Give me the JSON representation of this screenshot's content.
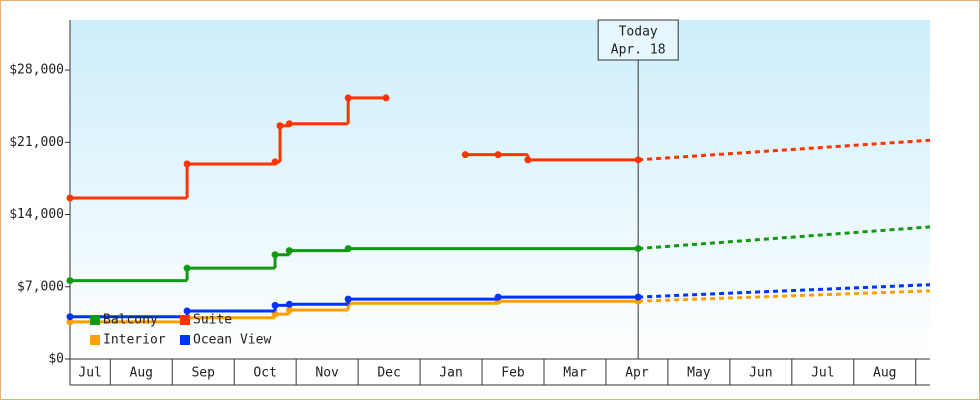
{
  "chart_data": {
    "type": "step-line",
    "annotation": {
      "title": "Today",
      "date": "Apr. 18",
      "x": 9.52
    },
    "categories": [
      "Jul",
      "Aug",
      "Sep",
      "Oct",
      "Nov",
      "Dec",
      "Jan",
      "Feb",
      "Mar",
      "Apr",
      "May",
      "Jun",
      "Jul",
      "Aug",
      null
    ],
    "xlim": [
      0.35,
      14.23
    ],
    "ylim": [
      0,
      32850
    ],
    "yticks": [
      {
        "value": 0,
        "label": "$0"
      },
      {
        "value": 7000,
        "label": "$7,000"
      },
      {
        "value": 14000,
        "label": "$14,000"
      },
      {
        "value": 21000,
        "label": "$21,000"
      },
      {
        "value": 28000,
        "label": "$28,000"
      }
    ],
    "forecast_x": [
      9.52,
      14.23
    ],
    "series": [
      {
        "name": "Balcony",
        "color": "#119911",
        "x": [
          0.35,
          2.24,
          3.66,
          3.89,
          4.84,
          9.52
        ],
        "values": [
          7600,
          8800,
          10100,
          10500,
          10700,
          10700
        ],
        "forecast": [
          10700,
          12800
        ]
      },
      {
        "name": "Suite",
        "color": "#ff3300",
        "x": [
          0.35,
          2.24,
          3.66,
          3.74,
          3.89,
          4.84,
          5.45,
          6.1,
          6.73,
          7.26,
          7.74,
          9.52
        ],
        "values": [
          15600,
          18900,
          19100,
          22600,
          22800,
          25300,
          25300,
          null,
          19800,
          19800,
          19300,
          19300
        ],
        "forecast": [
          19300,
          21200
        ]
      },
      {
        "name": "Interior",
        "color": "#ffa000",
        "x": [
          0.35,
          2.24,
          3.66,
          3.89,
          4.84,
          7.26,
          9.52
        ],
        "values": [
          3600,
          4000,
          4350,
          4750,
          5400,
          5600,
          5600
        ],
        "forecast": [
          5600,
          6600
        ]
      },
      {
        "name": "Ocean View",
        "color": "#0033ff",
        "x": [
          0.35,
          2.24,
          3.66,
          3.89,
          4.84,
          7.26,
          9.52
        ],
        "values": [
          4100,
          4650,
          5200,
          5300,
          5800,
          6000,
          6000
        ],
        "forecast": [
          6000,
          7200
        ]
      }
    ]
  }
}
